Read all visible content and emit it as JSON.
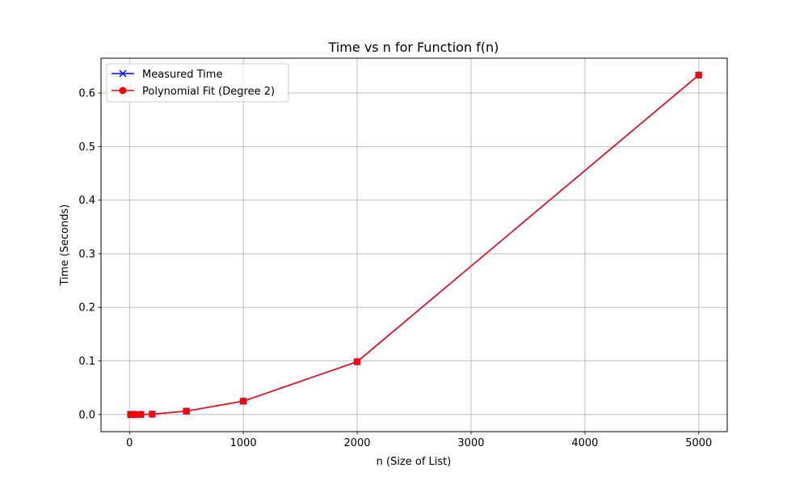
{
  "chart_data": {
    "type": "line",
    "title": "Time vs n for Function f(n)",
    "xlabel": "n (Size of List)",
    "ylabel": "Time (Seconds)",
    "xlim": [
      -250,
      5250
    ],
    "ylim": [
      -0.032,
      0.665
    ],
    "x_ticks": [
      0,
      1000,
      2000,
      3000,
      4000,
      5000
    ],
    "y_ticks": [
      0.0,
      0.1,
      0.2,
      0.3,
      0.4,
      0.5,
      0.6
    ],
    "x_tick_labels": [
      "0",
      "1000",
      "2000",
      "3000",
      "4000",
      "5000"
    ],
    "y_tick_labels": [
      "0.0",
      "0.1",
      "0.2",
      "0.3",
      "0.4",
      "0.5",
      "0.6"
    ],
    "grid": true,
    "legend_position": "top-left",
    "x": [
      10,
      20,
      50,
      100,
      200,
      500,
      1000,
      2000,
      5000
    ],
    "series": [
      {
        "name": "Measured Time",
        "values": [
          0.0,
          0.0,
          0.0,
          0.0,
          0.0006,
          0.0063,
          0.0249,
          0.0985,
          0.6335
        ],
        "color": "#0000ff",
        "marker": "x"
      },
      {
        "name": "Polynomial Fit (Degree 2)",
        "values": [
          0.0,
          0.0,
          0.0,
          0.0,
          0.0006,
          0.0063,
          0.0249,
          0.0985,
          0.6335
        ],
        "color": "#ff0000",
        "marker": "o"
      }
    ]
  }
}
